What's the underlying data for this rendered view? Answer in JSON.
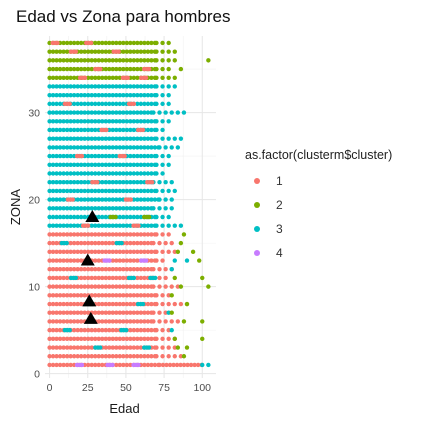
{
  "chart_data": {
    "type": "scatter",
    "title": "Edad vs Zona para hombres",
    "xlabel": "Edad",
    "ylabel": "ZONA",
    "xlim": [
      -3,
      109
    ],
    "ylim": [
      -0.5,
      38.8
    ],
    "xticks": [
      0,
      25,
      50,
      75,
      100
    ],
    "yticks": [
      0,
      10,
      20,
      30
    ],
    "grid": true,
    "legend": {
      "title": "as.factor(clusterm$cluster)",
      "position": "right",
      "entries": [
        {
          "label": "1",
          "color": "#F8766D"
        },
        {
          "label": "2",
          "color": "#7CAE00"
        },
        {
          "label": "3",
          "color": "#00BFC4"
        },
        {
          "label": "4",
          "color": "#C77CFF"
        }
      ]
    },
    "zones": [
      {
        "zona": 1,
        "bands": [
          [
            0,
            72,
            "1"
          ],
          [
            72,
            100,
            "1"
          ],
          [
            100,
            104,
            "3"
          ]
        ]
      },
      {
        "zona": 2,
        "bands": [
          [
            0,
            70,
            "1"
          ],
          [
            70,
            88,
            "1"
          ],
          [
            88,
            88,
            "2"
          ]
        ]
      },
      {
        "zona": 3,
        "bands": [
          [
            0,
            70,
            "1"
          ],
          [
            70,
            84,
            "1"
          ],
          [
            84,
            84,
            "2"
          ],
          [
            90,
            90,
            "2"
          ]
        ]
      },
      {
        "zona": 4,
        "bands": [
          [
            0,
            70,
            "1"
          ],
          [
            70,
            82,
            "1"
          ],
          [
            82,
            82,
            "2"
          ],
          [
            100,
            100,
            "2"
          ]
        ]
      },
      {
        "zona": 5,
        "bands": [
          [
            0,
            70,
            "1"
          ],
          [
            70,
            80,
            "1"
          ],
          [
            80,
            80,
            "3"
          ]
        ]
      },
      {
        "zona": 6,
        "bands": [
          [
            0,
            68,
            "1"
          ],
          [
            68,
            86,
            "1"
          ],
          [
            88,
            88,
            "2"
          ],
          [
            100,
            100,
            "2"
          ]
        ]
      },
      {
        "zona": 7,
        "bands": [
          [
            0,
            68,
            "1"
          ],
          [
            68,
            76,
            "1"
          ],
          [
            78,
            78,
            "3"
          ],
          [
            80,
            80,
            "2"
          ]
        ]
      },
      {
        "zona": 8,
        "bands": [
          [
            0,
            70,
            "1"
          ],
          [
            70,
            90,
            "1"
          ],
          [
            90,
            90,
            "2"
          ]
        ]
      },
      {
        "zona": 9,
        "bands": [
          [
            0,
            70,
            "1"
          ],
          [
            70,
            80,
            "1"
          ],
          [
            80,
            80,
            "2"
          ]
        ]
      },
      {
        "zona": 10,
        "bands": [
          [
            0,
            68,
            "1"
          ],
          [
            68,
            84,
            "1"
          ],
          [
            86,
            86,
            "2"
          ],
          [
            104,
            104,
            "2"
          ]
        ]
      },
      {
        "zona": 11,
        "bands": [
          [
            0,
            68,
            "1"
          ],
          [
            68,
            78,
            "1"
          ],
          [
            82,
            82,
            "2"
          ],
          [
            100,
            100,
            "2"
          ]
        ]
      },
      {
        "zona": 12,
        "bands": [
          [
            0,
            68,
            "1"
          ],
          [
            68,
            80,
            "1"
          ],
          [
            80,
            80,
            "3"
          ]
        ]
      },
      {
        "zona": 13,
        "bands": [
          [
            0,
            70,
            "1"
          ],
          [
            70,
            76,
            "1"
          ],
          [
            82,
            82,
            "3"
          ],
          [
            90,
            90,
            "3"
          ],
          [
            98,
            98,
            "2"
          ]
        ]
      },
      {
        "zona": 14,
        "bands": [
          [
            0,
            70,
            "1"
          ],
          [
            70,
            82,
            "1"
          ],
          [
            84,
            84,
            "2"
          ],
          [
            94,
            94,
            "2"
          ]
        ]
      },
      {
        "zona": 15,
        "bands": [
          [
            0,
            68,
            "1"
          ],
          [
            68,
            82,
            "1"
          ],
          [
            86,
            86,
            "2"
          ]
        ]
      },
      {
        "zona": 16,
        "bands": [
          [
            0,
            70,
            "1"
          ],
          [
            70,
            78,
            "1"
          ],
          [
            88,
            88,
            "2"
          ]
        ]
      },
      {
        "zona": 17,
        "bands": [
          [
            0,
            70,
            "3"
          ],
          [
            70,
            86,
            "3"
          ]
        ]
      },
      {
        "zona": 18,
        "bands": [
          [
            0,
            70,
            "3"
          ],
          [
            70,
            80,
            "3"
          ]
        ]
      },
      {
        "zona": 19,
        "bands": [
          [
            0,
            68,
            "3"
          ],
          [
            68,
            80,
            "3"
          ]
        ]
      },
      {
        "zona": 20,
        "bands": [
          [
            0,
            72,
            "3"
          ],
          [
            72,
            80,
            "3"
          ]
        ]
      },
      {
        "zona": 21,
        "bands": [
          [
            0,
            70,
            "3"
          ],
          [
            70,
            84,
            "3"
          ]
        ]
      },
      {
        "zona": 22,
        "bands": [
          [
            0,
            68,
            "3"
          ],
          [
            68,
            80,
            "3"
          ]
        ]
      },
      {
        "zona": 23,
        "bands": [
          [
            0,
            70,
            "3"
          ],
          [
            70,
            76,
            "3"
          ]
        ]
      },
      {
        "zona": 24,
        "bands": [
          [
            0,
            70,
            "3"
          ],
          [
            70,
            78,
            "3"
          ]
        ]
      },
      {
        "zona": 25,
        "bands": [
          [
            0,
            70,
            "3"
          ],
          [
            70,
            80,
            "3"
          ]
        ]
      },
      {
        "zona": 26,
        "bands": [
          [
            0,
            72,
            "3"
          ],
          [
            72,
            84,
            "3"
          ]
        ]
      },
      {
        "zona": 27,
        "bands": [
          [
            0,
            70,
            "3"
          ],
          [
            70,
            86,
            "3"
          ]
        ]
      },
      {
        "zona": 28,
        "bands": [
          [
            0,
            70,
            "3"
          ],
          [
            70,
            76,
            "3"
          ]
        ]
      },
      {
        "zona": 29,
        "bands": [
          [
            0,
            70,
            "3"
          ],
          [
            70,
            80,
            "3"
          ]
        ]
      },
      {
        "zona": 30,
        "bands": [
          [
            0,
            68,
            "3"
          ],
          [
            68,
            88,
            "3"
          ]
        ]
      },
      {
        "zona": 31,
        "bands": [
          [
            0,
            70,
            "3"
          ],
          [
            70,
            78,
            "3"
          ]
        ]
      },
      {
        "zona": 32,
        "bands": [
          [
            0,
            70,
            "3"
          ],
          [
            70,
            80,
            "3"
          ]
        ]
      },
      {
        "zona": 33,
        "bands": [
          [
            0,
            70,
            "3"
          ],
          [
            70,
            82,
            "3"
          ]
        ]
      },
      {
        "zona": 34,
        "bands": [
          [
            0,
            70,
            "2"
          ],
          [
            70,
            84,
            "2"
          ]
        ]
      },
      {
        "zona": 35,
        "bands": [
          [
            0,
            70,
            "2"
          ],
          [
            70,
            80,
            "2"
          ],
          [
            86,
            86,
            "2"
          ]
        ]
      },
      {
        "zona": 36,
        "bands": [
          [
            0,
            70,
            "2"
          ],
          [
            70,
            84,
            "2"
          ],
          [
            104,
            104,
            "2"
          ]
        ]
      },
      {
        "zona": 37,
        "bands": [
          [
            0,
            70,
            "2"
          ],
          [
            70,
            82,
            "2"
          ]
        ]
      },
      {
        "zona": 38,
        "bands": [
          [
            0,
            70,
            "2"
          ],
          [
            70,
            80,
            "2"
          ]
        ]
      }
    ],
    "mixes": [
      {
        "zona": 1,
        "x": [
          18,
          38,
          55
        ],
        "cluster": "4"
      },
      {
        "zona": 3,
        "x": [
          30,
          62
        ],
        "cluster": "3"
      },
      {
        "zona": 5,
        "x": [
          10,
          47
        ],
        "cluster": "3"
      },
      {
        "zona": 8,
        "x": [
          25,
          58
        ],
        "cluster": "3"
      },
      {
        "zona": 11,
        "x": [
          14,
          52,
          66
        ],
        "cluster": "3"
      },
      {
        "zona": 13,
        "x": [
          36,
          60
        ],
        "cluster": "4"
      },
      {
        "zona": 15,
        "x": [
          8,
          44
        ],
        "cluster": "3"
      },
      {
        "zona": 17,
        "x": [
          22,
          55
        ],
        "cluster": "1"
      },
      {
        "zona": 18,
        "x": [
          40,
          62
        ],
        "cluster": "2"
      },
      {
        "zona": 20,
        "x": [
          12,
          50
        ],
        "cluster": "1"
      },
      {
        "zona": 22,
        "x": [
          28,
          64
        ],
        "cluster": "1"
      },
      {
        "zona": 25,
        "x": [
          18,
          46
        ],
        "cluster": "1"
      },
      {
        "zona": 28,
        "x": [
          34,
          58
        ],
        "cluster": "1"
      },
      {
        "zona": 31,
        "x": [
          10,
          52
        ],
        "cluster": "1"
      },
      {
        "zona": 34,
        "x": [
          20,
          48,
          60
        ],
        "cluster": "1"
      },
      {
        "zona": 35,
        "x": [
          30,
          62
        ],
        "cluster": "1"
      },
      {
        "zona": 37,
        "x": [
          14,
          42
        ],
        "cluster": "1"
      },
      {
        "zona": 38,
        "x": [
          2,
          24
        ],
        "cluster": "1"
      }
    ],
    "centroids": [
      {
        "x": 27,
        "y": 6.3
      },
      {
        "x": 26,
        "y": 8.3
      },
      {
        "x": 25,
        "y": 13
      },
      {
        "x": 28,
        "y": 18
      }
    ]
  }
}
